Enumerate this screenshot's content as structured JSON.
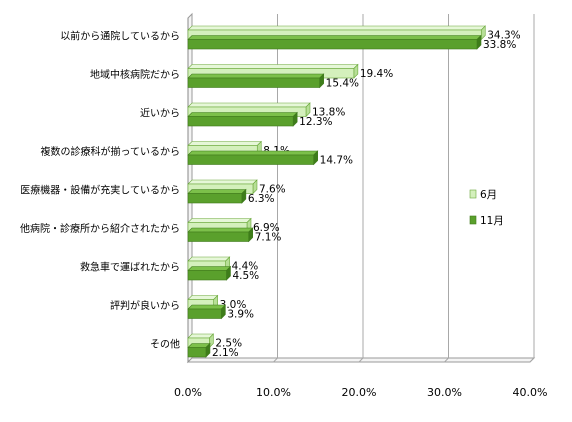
{
  "chart_data": {
    "type": "bar",
    "orientation": "horizontal",
    "title": "",
    "xlabel": "",
    "ylabel": "",
    "xlim": [
      0,
      40
    ],
    "x_tick_labels": [
      "0.0%",
      "10.0%",
      "20.0%",
      "30.0%",
      "40.0%"
    ],
    "x_ticks": [
      0,
      10,
      20,
      30,
      40
    ],
    "grid": "vertical",
    "legend_position": "right",
    "categories": [
      "以前から通院しているから",
      "地域中核病院だから",
      "近いから",
      "複数の診療科が揃っているから",
      "医療機器・設備が充実しているから",
      "他病院・診療所から紹介されたから",
      "救急車で運ばれたから",
      "評判が良いから",
      "その他"
    ],
    "series": [
      {
        "name": "6月",
        "color": "#d4f0bc",
        "stroke": "#6aa83a",
        "values": [
          34.3,
          19.4,
          13.8,
          8.1,
          7.6,
          6.9,
          4.4,
          3.0,
          2.5
        ],
        "labels": [
          "34.3%",
          "19.4%",
          "13.8%",
          "8.1%",
          "7.6%",
          "6.9%",
          "4.4%",
          "3.0%",
          "2.5%"
        ]
      },
      {
        "name": "11月",
        "color": "#5aa02c",
        "stroke": "#3f7a1c",
        "values": [
          33.8,
          15.4,
          12.3,
          14.7,
          6.3,
          7.1,
          4.5,
          3.9,
          2.1
        ],
        "labels": [
          "33.8%",
          "15.4%",
          "12.3%",
          "14.7%",
          "6.3%",
          "7.1%",
          "4.5%",
          "3.9%",
          "2.1%"
        ]
      }
    ]
  }
}
